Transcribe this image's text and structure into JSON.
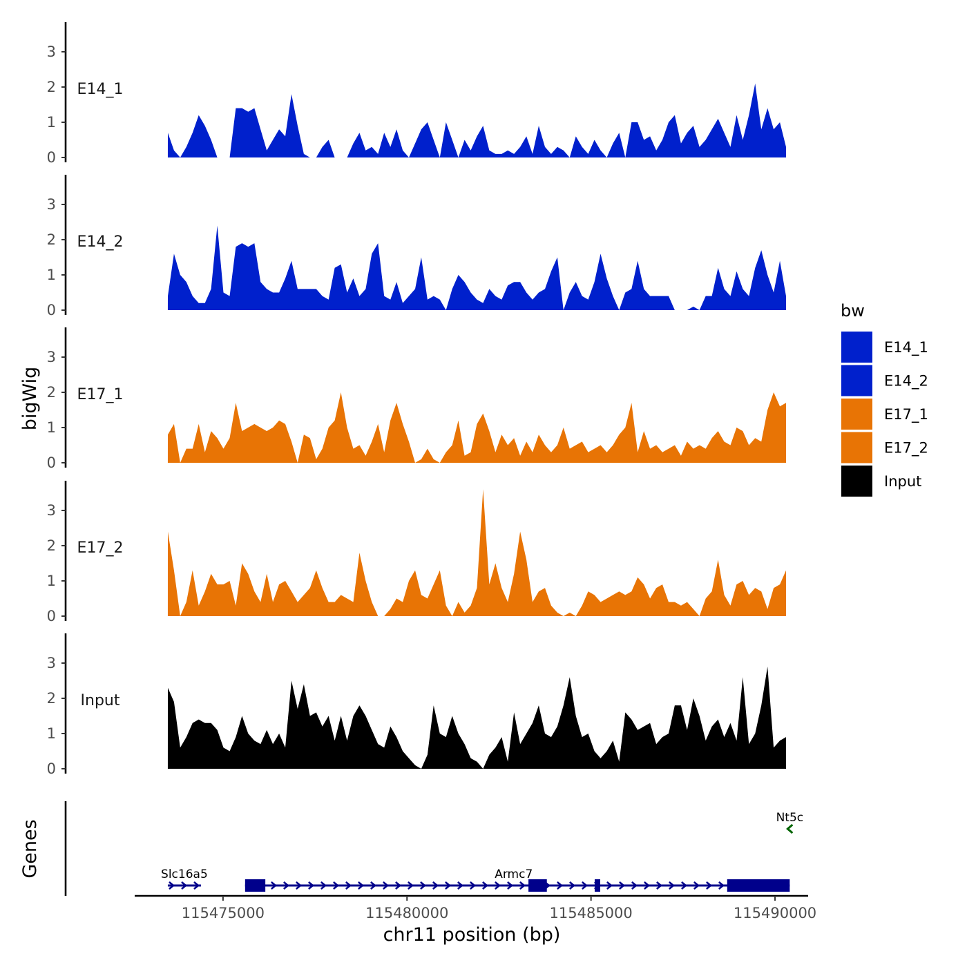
{
  "chart_data": {
    "type": "area",
    "title": "",
    "xlabel": "chr11 position (bp)",
    "ylabel": "bigWig",
    "genes_label": "Genes",
    "xlim": [
      115472600,
      115490900
    ],
    "x_ticks": [
      115475000,
      115480000,
      115485000,
      115490000
    ],
    "x_tick_labels": [
      "115475000",
      "115480000",
      "115485000",
      "115490000"
    ],
    "ylim": [
      0,
      3.85
    ],
    "y_ticks": [
      0,
      1,
      2,
      3
    ],
    "y_tick_labels": [
      "0",
      "1",
      "2",
      "3"
    ],
    "data_start": 115473500,
    "data_end": 115490300,
    "legend": {
      "title": "bw",
      "items": [
        {
          "label": "E14_1",
          "color": "#0020CC"
        },
        {
          "label": "E14_2",
          "color": "#0020CC"
        },
        {
          "label": "E17_1",
          "color": "#E87405"
        },
        {
          "label": "E17_2",
          "color": "#E87405"
        },
        {
          "label": "Input",
          "color": "#000000"
        }
      ]
    },
    "series": [
      {
        "name": "E14_1",
        "color": "#0020CC",
        "values": [
          0.7,
          0.2,
          0.0,
          0.3,
          0.7,
          1.2,
          0.9,
          0.5,
          0.0,
          0.0,
          0.0,
          1.4,
          1.4,
          1.3,
          1.4,
          0.8,
          0.2,
          0.5,
          0.8,
          0.6,
          1.8,
          0.9,
          0.1,
          0.0,
          0.0,
          0.3,
          0.5,
          0.0,
          0.0,
          0.0,
          0.4,
          0.7,
          0.2,
          0.3,
          0.1,
          0.7,
          0.3,
          0.8,
          0.2,
          0.0,
          0.4,
          0.8,
          1.0,
          0.5,
          0.0,
          1.0,
          0.5,
          0.0,
          0.5,
          0.2,
          0.6,
          0.9,
          0.2,
          0.1,
          0.1,
          0.2,
          0.1,
          0.3,
          0.6,
          0.1,
          0.9,
          0.3,
          0.1,
          0.3,
          0.2,
          0.0,
          0.6,
          0.3,
          0.1,
          0.5,
          0.2,
          0.0,
          0.4,
          0.7,
          0.0,
          1.0,
          1.0,
          0.5,
          0.6,
          0.2,
          0.5,
          1.0,
          1.2,
          0.4,
          0.7,
          0.9,
          0.3,
          0.5,
          0.8,
          1.1,
          0.7,
          0.3,
          1.2,
          0.5,
          1.2,
          2.1,
          0.8,
          1.4,
          0.8,
          1.0,
          0.3
        ]
      },
      {
        "name": "E14_2",
        "color": "#0020CC",
        "values": [
          0.4,
          1.6,
          1.0,
          0.8,
          0.4,
          0.2,
          0.2,
          0.6,
          2.4,
          0.5,
          0.4,
          1.8,
          1.9,
          1.8,
          1.9,
          0.8,
          0.6,
          0.5,
          0.5,
          0.9,
          1.4,
          0.6,
          0.6,
          0.6,
          0.6,
          0.4,
          0.3,
          1.2,
          1.3,
          0.5,
          0.9,
          0.4,
          0.6,
          1.6,
          1.9,
          0.4,
          0.3,
          0.8,
          0.2,
          0.4,
          0.6,
          1.5,
          0.3,
          0.4,
          0.3,
          0.0,
          0.6,
          1.0,
          0.8,
          0.5,
          0.3,
          0.2,
          0.6,
          0.4,
          0.3,
          0.7,
          0.8,
          0.8,
          0.5,
          0.3,
          0.5,
          0.6,
          1.1,
          1.5,
          0.0,
          0.5,
          0.8,
          0.4,
          0.3,
          0.8,
          1.6,
          0.9,
          0.4,
          0.0,
          0.5,
          0.6,
          1.4,
          0.6,
          0.4,
          0.4,
          0.4,
          0.4,
          0.0,
          0.0,
          0.0,
          0.1,
          0.0,
          0.4,
          0.4,
          1.2,
          0.6,
          0.4,
          1.1,
          0.6,
          0.4,
          1.2,
          1.7,
          1.0,
          0.5,
          1.4,
          0.4
        ]
      },
      {
        "name": "E17_1",
        "color": "#E87405",
        "values": [
          0.8,
          1.1,
          0.0,
          0.4,
          0.4,
          1.1,
          0.3,
          0.9,
          0.7,
          0.4,
          0.7,
          1.7,
          0.9,
          1.0,
          1.1,
          1.0,
          0.9,
          1.0,
          1.2,
          1.1,
          0.6,
          0.0,
          0.8,
          0.7,
          0.1,
          0.4,
          1.0,
          1.2,
          2.0,
          1.0,
          0.4,
          0.5,
          0.2,
          0.6,
          1.1,
          0.3,
          1.2,
          1.7,
          1.1,
          0.6,
          0.0,
          0.1,
          0.4,
          0.1,
          0.0,
          0.3,
          0.5,
          1.2,
          0.2,
          0.3,
          1.1,
          1.4,
          0.9,
          0.3,
          0.8,
          0.5,
          0.7,
          0.2,
          0.6,
          0.3,
          0.8,
          0.5,
          0.3,
          0.5,
          1.0,
          0.4,
          0.5,
          0.6,
          0.3,
          0.4,
          0.5,
          0.3,
          0.5,
          0.8,
          1.0,
          1.7,
          0.3,
          0.9,
          0.4,
          0.5,
          0.3,
          0.4,
          0.5,
          0.2,
          0.6,
          0.4,
          0.5,
          0.4,
          0.7,
          0.9,
          0.6,
          0.5,
          1.0,
          0.9,
          0.5,
          0.7,
          0.6,
          1.5,
          2.0,
          1.6,
          1.7
        ]
      },
      {
        "name": "E17_2",
        "color": "#E87405",
        "values": [
          2.4,
          1.3,
          0.0,
          0.4,
          1.3,
          0.3,
          0.7,
          1.2,
          0.9,
          0.9,
          1.0,
          0.3,
          1.5,
          1.2,
          0.7,
          0.4,
          1.2,
          0.4,
          0.9,
          1.0,
          0.7,
          0.4,
          0.6,
          0.8,
          1.3,
          0.8,
          0.4,
          0.4,
          0.6,
          0.5,
          0.4,
          1.8,
          1.0,
          0.4,
          0.0,
          0.0,
          0.2,
          0.5,
          0.4,
          1.0,
          1.3,
          0.6,
          0.5,
          0.9,
          1.3,
          0.3,
          0.0,
          0.4,
          0.1,
          0.3,
          0.8,
          3.6,
          0.9,
          1.5,
          0.8,
          0.4,
          1.2,
          2.4,
          1.6,
          0.4,
          0.7,
          0.8,
          0.3,
          0.1,
          0.0,
          0.1,
          0.0,
          0.3,
          0.7,
          0.6,
          0.4,
          0.5,
          0.6,
          0.7,
          0.6,
          0.7,
          1.1,
          0.9,
          0.5,
          0.8,
          0.9,
          0.4,
          0.4,
          0.3,
          0.4,
          0.2,
          0.0,
          0.5,
          0.7,
          1.6,
          0.6,
          0.3,
          0.9,
          1.0,
          0.6,
          0.8,
          0.7,
          0.2,
          0.8,
          0.9,
          1.3
        ]
      },
      {
        "name": "Input",
        "color": "#000000",
        "values": [
          2.3,
          1.9,
          0.6,
          0.9,
          1.3,
          1.4,
          1.3,
          1.3,
          1.1,
          0.6,
          0.5,
          0.9,
          1.5,
          1.0,
          0.8,
          0.7,
          1.1,
          0.7,
          1.0,
          0.6,
          2.5,
          1.7,
          2.4,
          1.5,
          1.6,
          1.2,
          1.5,
          0.8,
          1.5,
          0.8,
          1.5,
          1.8,
          1.5,
          1.1,
          0.7,
          0.6,
          1.2,
          0.9,
          0.5,
          0.3,
          0.1,
          0.0,
          0.4,
          1.8,
          1.0,
          0.9,
          1.5,
          1.0,
          0.7,
          0.3,
          0.2,
          0.0,
          0.4,
          0.6,
          0.9,
          0.2,
          1.6,
          0.7,
          1.0,
          1.3,
          1.8,
          1.0,
          0.9,
          1.2,
          1.8,
          2.6,
          1.5,
          0.9,
          1.0,
          0.5,
          0.3,
          0.5,
          0.8,
          0.2,
          1.6,
          1.4,
          1.1,
          1.2,
          1.3,
          0.7,
          0.9,
          1.0,
          1.8,
          1.8,
          1.1,
          2.0,
          1.5,
          0.8,
          1.2,
          1.4,
          0.9,
          1.3,
          0.8,
          2.6,
          0.7,
          1.0,
          1.8,
          2.9,
          0.6,
          0.8,
          0.9
        ]
      }
    ],
    "genes": [
      {
        "name": "Slc16a5",
        "start": 115473500,
        "end": 115474400,
        "strand": "+",
        "color": "#00008B",
        "row": 0,
        "exons": []
      },
      {
        "name": "Armc7",
        "start": 115475600,
        "end": 115490400,
        "strand": "+",
        "color": "#00008B",
        "row": 0,
        "label_pos": 115482900,
        "exons": [
          [
            115475600,
            115476150
          ],
          [
            115483300,
            115483800
          ],
          [
            115485100,
            115485250
          ],
          [
            115488700,
            115490400
          ]
        ]
      },
      {
        "name": "Nt5c",
        "start": 115490330,
        "end": 115490470,
        "strand": "-",
        "color": "#006400",
        "row": 1,
        "exons": []
      }
    ]
  }
}
